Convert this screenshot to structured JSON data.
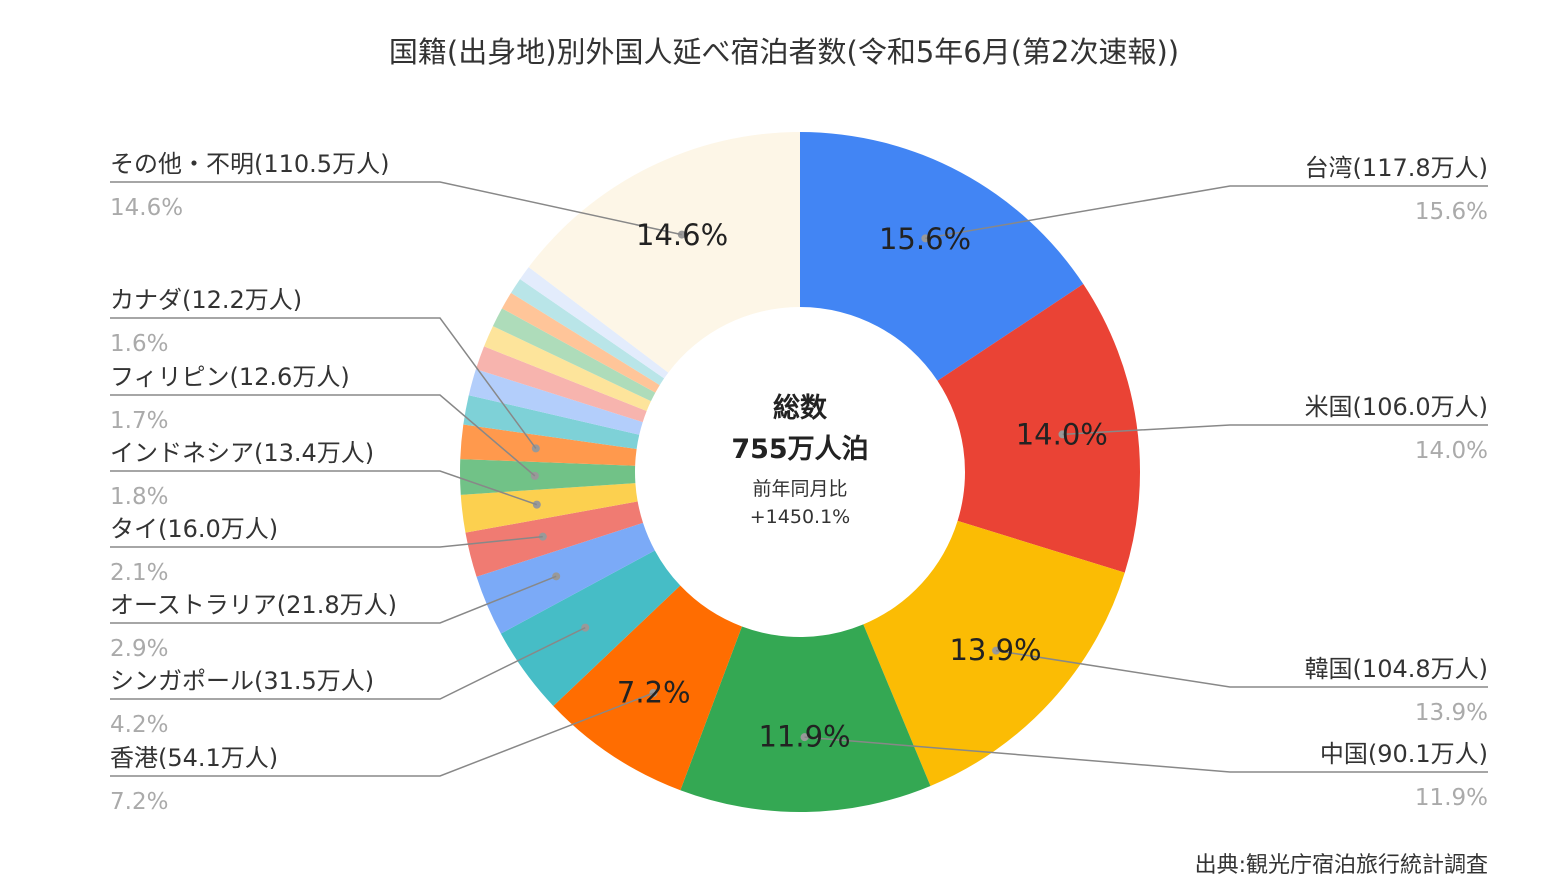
{
  "chart_data": {
    "type": "donut",
    "title": "国籍(出身地)別外国人延べ宿泊者数(令和5年6月(第2次速報))",
    "center": {
      "title": "総数",
      "total": "755万人泊",
      "sub_label": "前年同月比",
      "sub_value": "+1450.1%"
    },
    "source": "出典:観光庁宿泊旅行統計調査",
    "unit": "万人",
    "series": [
      {
        "name": "台湾",
        "value": 117.8,
        "percent": 15.6,
        "label": "台湾(117.8万人)",
        "pct_label": "15.6%",
        "color": "#4285F4"
      },
      {
        "name": "米国",
        "value": 106.0,
        "percent": 14.0,
        "label": "米国(106.0万人)",
        "pct_label": "14.0%",
        "color": "#EA4335"
      },
      {
        "name": "韓国",
        "value": 104.8,
        "percent": 13.9,
        "label": "韓国(104.8万人)",
        "pct_label": "13.9%",
        "color": "#FBBC04"
      },
      {
        "name": "中国",
        "value": 90.1,
        "percent": 11.9,
        "label": "中国(90.1万人)",
        "pct_label": "11.9%",
        "color": "#34A853"
      },
      {
        "name": "香港",
        "value": 54.1,
        "percent": 7.2,
        "label": "香港(54.1万人)",
        "pct_label": "7.2%",
        "color": "#FF6D01"
      },
      {
        "name": "シンガポール",
        "value": 31.5,
        "percent": 4.2,
        "label": "シンガポール(31.5万人)",
        "pct_label": "4.2%",
        "color": "#46BDC6"
      },
      {
        "name": "オーストラリア",
        "value": 21.8,
        "percent": 2.9,
        "label": "オーストラリア(21.8万人)",
        "pct_label": "2.9%",
        "color": "#7BAAF7"
      },
      {
        "name": "タイ",
        "value": 16.0,
        "percent": 2.1,
        "label": "タイ(16.0万人)",
        "pct_label": "2.1%",
        "color": "#F07B72"
      },
      {
        "name": "インドネシア",
        "value": 13.4,
        "percent": 1.8,
        "label": "インドネシア(13.4万人)",
        "pct_label": "1.8%",
        "color": "#FCD04F"
      },
      {
        "name": "フィリピン",
        "value": 12.6,
        "percent": 1.7,
        "label": "フィリピン(12.6万人)",
        "pct_label": "1.7%",
        "color": "#71C287"
      },
      {
        "name": "カナダ",
        "value": 12.2,
        "percent": 1.6,
        "label": "カナダ(12.2万人)",
        "pct_label": "1.6%",
        "color": "#FF994D"
      },
      {
        "name": "",
        "value": 10.5,
        "percent": 1.4,
        "label": "",
        "pct_label": "",
        "color": "#7ED1D7"
      },
      {
        "name": "",
        "value": 9.5,
        "percent": 1.25,
        "label": "",
        "pct_label": "",
        "color": "#B3CEFB"
      },
      {
        "name": "",
        "value": 8.5,
        "percent": 1.1,
        "label": "",
        "pct_label": "",
        "color": "#F7B4AE"
      },
      {
        "name": "",
        "value": 7.8,
        "percent": 1.0,
        "label": "",
        "pct_label": "",
        "color": "#FDE49B"
      },
      {
        "name": "",
        "value": 7.0,
        "percent": 0.9,
        "label": "",
        "pct_label": "",
        "color": "#AEDCBA"
      },
      {
        "name": "",
        "value": 6.3,
        "percent": 0.8,
        "label": "",
        "pct_label": "",
        "color": "#FFC599"
      },
      {
        "name": "",
        "value": 5.8,
        "percent": 0.75,
        "label": "",
        "pct_label": "",
        "color": "#B9E5E8"
      },
      {
        "name": "",
        "value": 5.2,
        "percent": 0.7,
        "label": "",
        "pct_label": "",
        "color": "#E3ECFC"
      },
      {
        "name": "その他・不明",
        "value": 110.5,
        "percent": 14.6,
        "label": "その他・不明(110.5万人)",
        "pct_label": "14.6%",
        "color": "#FDF6E7"
      }
    ]
  }
}
